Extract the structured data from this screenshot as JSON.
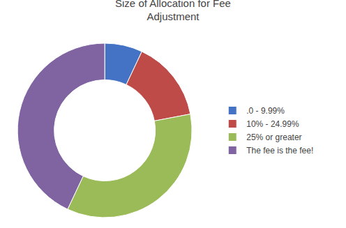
{
  "chart_data": {
    "type": "donut",
    "title": "Size of Allocation for Fee\nAdjustment",
    "categories": [
      ".0 - 9.99%",
      "10% - 24.99%",
      "25% or greater",
      "The fee is the fee!"
    ],
    "values": [
      7,
      15,
      35,
      43
    ],
    "colors": [
      "#4472C4",
      "#BE4B48",
      "#9BBB59",
      "#8064A2"
    ],
    "legend": "right"
  }
}
